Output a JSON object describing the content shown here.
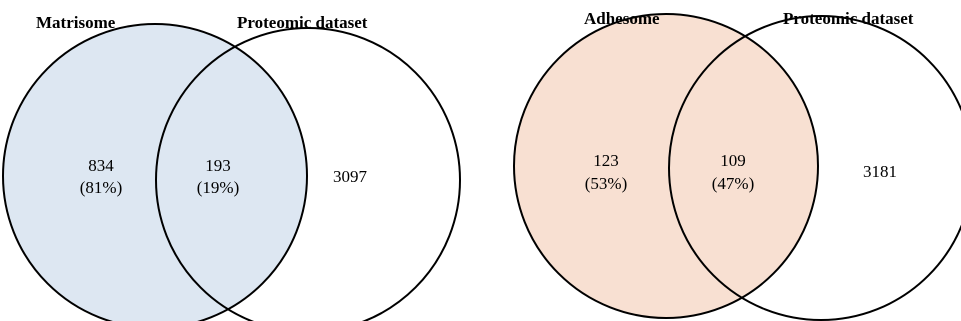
{
  "diagrams": [
    {
      "left_set": {
        "title": "Matrisome",
        "fill_color": "#dde7f2"
      },
      "right_set": {
        "title": "Proteomic dataset"
      },
      "regions": {
        "left_only": {
          "count": "834",
          "percent": "(81%)"
        },
        "overlap": {
          "count": "193",
          "percent": "(19%)"
        },
        "right_only": {
          "count": "3097"
        }
      }
    },
    {
      "left_set": {
        "title": "Adhesome",
        "fill_color": "#f8e0d2"
      },
      "right_set": {
        "title": "Proteomic dataset"
      },
      "regions": {
        "left_only": {
          "count": "123",
          "percent": "(53%)"
        },
        "overlap": {
          "count": "109",
          "percent": "(47%)"
        },
        "right_only": {
          "count": "3181"
        }
      }
    }
  ]
}
